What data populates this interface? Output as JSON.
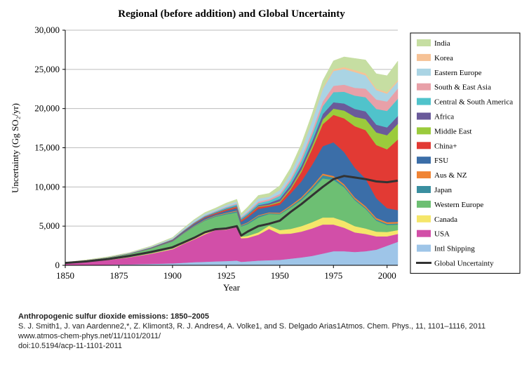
{
  "chart_data": {
    "type": "area",
    "title": "Regional (before addition) and Global Uncertainty",
    "xlabel": "Year",
    "ylabel": "Uncertainty (Gg SO₂/yr)",
    "xlim": [
      1850,
      2005
    ],
    "ylim": [
      0,
      30000
    ],
    "x_ticks": [
      "1850",
      "1875",
      "1900",
      "1925",
      "1950",
      "1975",
      "2000"
    ],
    "y_ticks": [
      "0",
      "5,000",
      "10,000",
      "15,000",
      "20,000",
      "25,000",
      "30,000"
    ],
    "grid": "horizontal",
    "legend_position": "right",
    "x": [
      1850,
      1860,
      1870,
      1880,
      1890,
      1900,
      1905,
      1910,
      1915,
      1920,
      1925,
      1930,
      1932,
      1935,
      1940,
      1945,
      1950,
      1955,
      1960,
      1965,
      1970,
      1975,
      1980,
      1985,
      1990,
      1995,
      2000,
      2005
    ],
    "series": [
      {
        "name": "Intl Shipping",
        "color": "#9ec5e8",
        "values": [
          0,
          50,
          80,
          120,
          180,
          250,
          320,
          400,
          450,
          500,
          550,
          600,
          450,
          500,
          600,
          650,
          700,
          850,
          1000,
          1200,
          1500,
          1800,
          1800,
          1700,
          1800,
          2000,
          2500,
          3000
        ]
      },
      {
        "name": "USA",
        "color": "#d24fa8",
        "values": [
          200,
          400,
          600,
          900,
          1300,
          1800,
          2400,
          2900,
          3500,
          4000,
          4000,
          4300,
          3000,
          3000,
          3300,
          4000,
          3300,
          3200,
          3300,
          3500,
          3700,
          3400,
          3000,
          2500,
          2200,
          1700,
          1200,
          1000
        ]
      },
      {
        "name": "Canada",
        "color": "#f5e66a",
        "values": [
          0,
          10,
          20,
          30,
          50,
          80,
          100,
          130,
          150,
          200,
          250,
          250,
          200,
          250,
          300,
          400,
          500,
          600,
          700,
          800,
          900,
          900,
          850,
          800,
          700,
          600,
          550,
          500
        ]
      },
      {
        "name": "Western Europe",
        "color": "#6dbf73",
        "values": [
          150,
          200,
          300,
          400,
          600,
          900,
          1200,
          1500,
          1600,
          1500,
          1700,
          1600,
          1300,
          1500,
          1900,
          1500,
          2000,
          2700,
          3300,
          4100,
          5000,
          4800,
          4300,
          3300,
          2500,
          1400,
          900,
          700
        ]
      },
      {
        "name": "Japan",
        "color": "#3a8fa0",
        "values": [
          0,
          0,
          0,
          10,
          20,
          40,
          50,
          60,
          80,
          100,
          120,
          150,
          120,
          150,
          200,
          100,
          100,
          150,
          200,
          300,
          400,
          300,
          200,
          150,
          150,
          150,
          150,
          150
        ]
      },
      {
        "name": "Aus & NZ",
        "color": "#f08434",
        "values": [
          0,
          0,
          10,
          20,
          30,
          40,
          50,
          60,
          70,
          80,
          90,
          90,
          80,
          90,
          100,
          100,
          120,
          150,
          180,
          200,
          200,
          200,
          200,
          200,
          200,
          200,
          200,
          200
        ]
      },
      {
        "name": "FSU",
        "color": "#3b6ea8",
        "values": [
          0,
          10,
          20,
          30,
          60,
          100,
          150,
          200,
          200,
          150,
          250,
          300,
          400,
          600,
          800,
          700,
          1000,
          1500,
          2000,
          2700,
          3500,
          4300,
          4100,
          3800,
          3500,
          2500,
          1800,
          1500
        ]
      },
      {
        "name": "China+",
        "color": "#e23a34",
        "values": [
          0,
          0,
          10,
          20,
          30,
          50,
          60,
          80,
          100,
          120,
          150,
          170,
          170,
          200,
          250,
          200,
          300,
          500,
          1200,
          2000,
          2800,
          3500,
          4300,
          5300,
          6200,
          6800,
          7500,
          9000
        ]
      },
      {
        "name": "Middle East",
        "color": "#9bcb3c",
        "values": [
          0,
          0,
          0,
          0,
          0,
          10,
          10,
          20,
          20,
          30,
          40,
          50,
          50,
          60,
          80,
          100,
          150,
          200,
          300,
          400,
          600,
          800,
          1000,
          1200,
          1400,
          1600,
          1800,
          2000
        ]
      },
      {
        "name": "Africa",
        "color": "#6a5a9a",
        "values": [
          0,
          0,
          0,
          0,
          10,
          20,
          30,
          40,
          50,
          60,
          80,
          100,
          100,
          120,
          150,
          200,
          300,
          400,
          500,
          600,
          700,
          800,
          900,
          1000,
          1000,
          1000,
          1000,
          1000
        ]
      },
      {
        "name": "Central & South America",
        "color": "#50c3cb",
        "values": [
          0,
          0,
          0,
          10,
          20,
          40,
          50,
          70,
          90,
          120,
          150,
          180,
          180,
          200,
          250,
          300,
          400,
          500,
          600,
          800,
          1000,
          1300,
          1500,
          1700,
          1800,
          2000,
          2100,
          2200
        ]
      },
      {
        "name": "South & East Asia",
        "color": "#e8a0a8",
        "values": [
          0,
          0,
          0,
          10,
          20,
          30,
          40,
          50,
          60,
          80,
          100,
          120,
          120,
          150,
          200,
          200,
          250,
          300,
          400,
          500,
          600,
          800,
          900,
          1000,
          1100,
          1200,
          1200,
          1300
        ]
      },
      {
        "name": "Eastern Europe",
        "color": "#aad4e4",
        "values": [
          10,
          20,
          30,
          50,
          80,
          120,
          160,
          200,
          200,
          180,
          250,
          250,
          200,
          280,
          400,
          300,
          500,
          700,
          1000,
          1300,
          1600,
          1900,
          2000,
          2000,
          1700,
          1200,
          1000,
          900
        ]
      },
      {
        "name": "Korea",
        "color": "#f6c296",
        "values": [
          0,
          0,
          0,
          0,
          0,
          0,
          0,
          0,
          10,
          10,
          20,
          20,
          20,
          30,
          40,
          30,
          40,
          60,
          80,
          100,
          150,
          200,
          250,
          250,
          250,
          200,
          200,
          200
        ]
      },
      {
        "name": "India",
        "color": "#c6dea2",
        "values": [
          10,
          20,
          30,
          40,
          60,
          80,
          100,
          120,
          150,
          180,
          200,
          250,
          250,
          300,
          350,
          400,
          500,
          600,
          700,
          800,
          900,
          1100,
          1300,
          1500,
          1700,
          1900,
          2100,
          2400
        ]
      },
      {
        "name": "Global Uncertainty",
        "color": "#333333",
        "type": "line",
        "values": [
          300,
          500,
          800,
          1200,
          1700,
          2300,
          2900,
          3500,
          4200,
          4600,
          4700,
          5000,
          3800,
          4300,
          5000,
          5300,
          5700,
          6800,
          7800,
          8900,
          10000,
          11000,
          11400,
          11200,
          11000,
          10700,
          10600,
          10800
        ]
      }
    ]
  },
  "legend_order": [
    "India",
    "Korea",
    "Eastern Europe",
    "South & East Asia",
    "Central & South America",
    "Africa",
    "Middle East",
    "China+",
    "FSU",
    "Aus & NZ",
    "Japan",
    "Western Europe",
    "Canada",
    "USA",
    "Intl Shipping",
    "Global Uncertainty"
  ],
  "caption": {
    "title": "Anthropogenic sulfur dioxide emissions: 1850–2005",
    "authors": "S. J. Smith1, J. van Aardenne2,*, Z. Klimont3, R. J. Andres4, A. Volke1, and S. Delgado Arias1Atmos. Chem. Phys., 11, 1101–1116, 2011",
    "url": "www.atmos-chem-phys.net/11/1101/2011/",
    "doi": "doi:10.5194/acp-11-1101-2011"
  }
}
